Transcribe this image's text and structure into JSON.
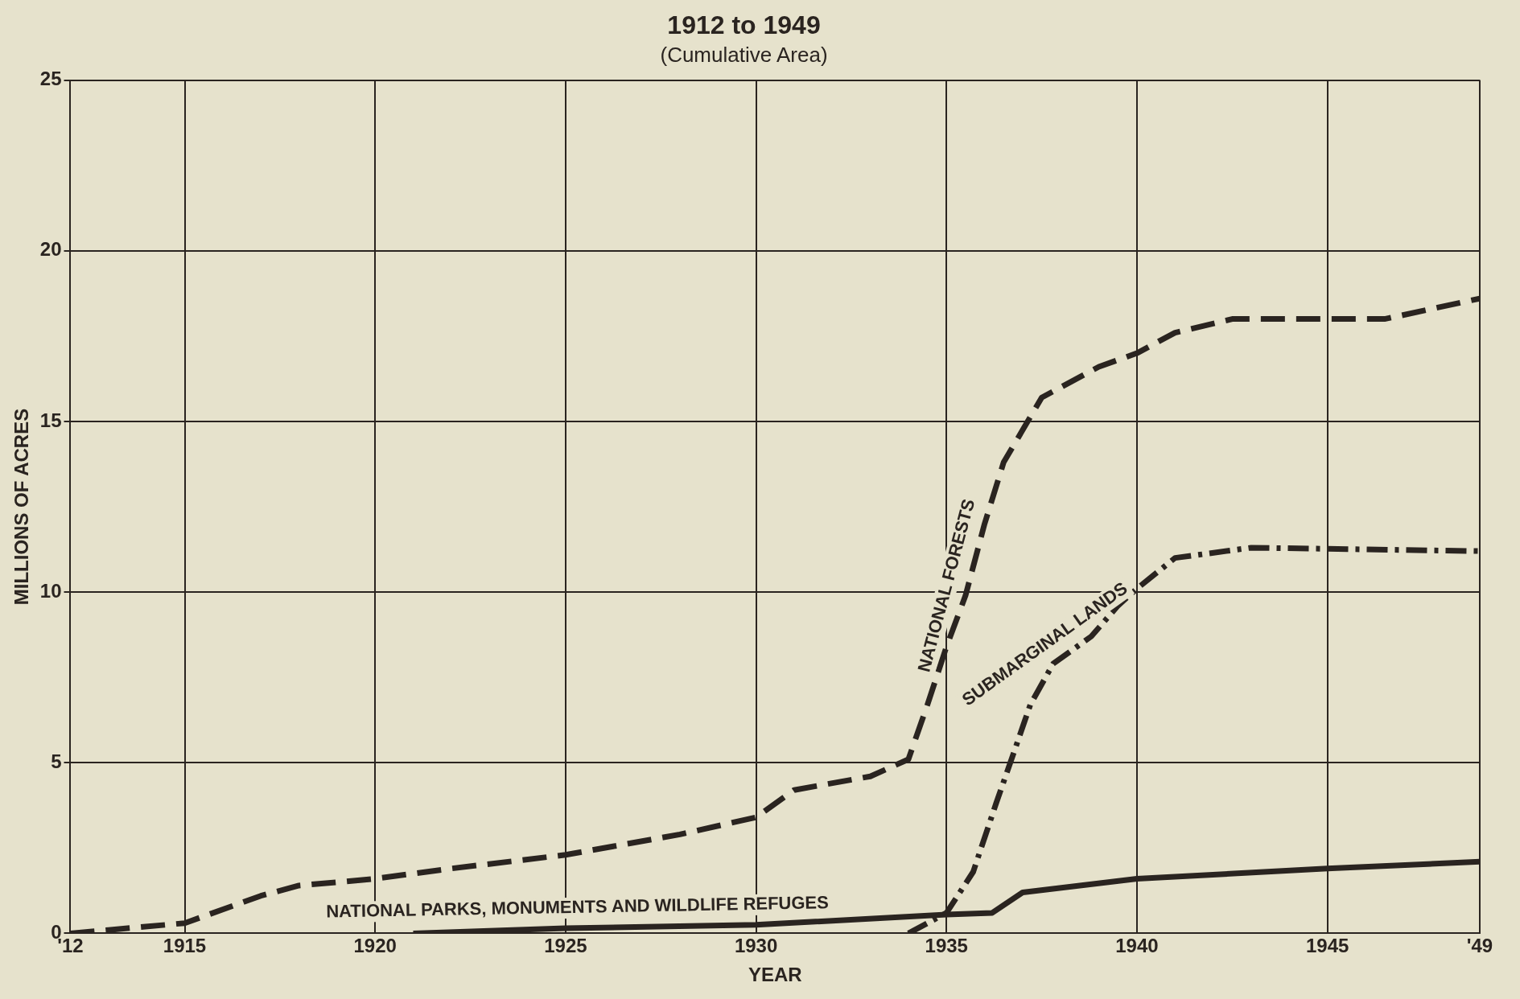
{
  "chart_data": {
    "type": "line",
    "title": "1912 to 1949",
    "subtitle": "(Cumulative Area)",
    "xlabel": "YEAR",
    "ylabel": "MILLIONS OF ACRES",
    "xlim": [
      1912,
      1949
    ],
    "xticks": [
      {
        "value": 1912,
        "label": "'12"
      },
      1915,
      1920,
      1925,
      1930,
      1935,
      1940,
      1945,
      {
        "value": 1949,
        "label": "'49"
      }
    ],
    "ylim": [
      0,
      25
    ],
    "yticks": [
      0,
      5,
      10,
      15,
      20,
      25
    ],
    "grid": true,
    "legend": false,
    "marker": "none",
    "series": [
      {
        "name": "NATIONAL FORESTS",
        "color": "#2a2420",
        "line_style": "dashed",
        "x": [
          1912,
          1913,
          1915,
          1917,
          1918,
          1920,
          1922,
          1925,
          1928,
          1930,
          1931,
          1933,
          1934,
          1934.5,
          1935,
          1935.5,
          1936,
          1936.5,
          1937.5,
          1939,
          1940,
          1941,
          1942.5,
          1946.5,
          1949
        ],
        "values": [
          0,
          0.1,
          0.3,
          1.1,
          1.4,
          1.6,
          1.9,
          2.3,
          2.9,
          3.4,
          4.2,
          4.6,
          5.1,
          6.7,
          8.4,
          9.9,
          12,
          13.8,
          15.7,
          16.6,
          17,
          17.6,
          18,
          18,
          18.6
        ]
      },
      {
        "name": "SUBMARGINAL LANDS",
        "color": "#2a2420",
        "line_style": "dashdot",
        "x": [
          1934,
          1935,
          1935.7,
          1936.3,
          1936.8,
          1937.2,
          1937.8,
          1938.8,
          1939.5,
          1940,
          1941,
          1943,
          1949
        ],
        "values": [
          0,
          0.6,
          1.8,
          3.8,
          5.4,
          6.7,
          7.9,
          8.7,
          9.6,
          10.1,
          11,
          11.3,
          11.2
        ]
      },
      {
        "name": "NATIONAL PARKS, MONUMENTS AND WILDLIFE REFUGES",
        "color": "#2a2420",
        "line_style": "solid",
        "x": [
          1921,
          1925,
          1930,
          1935,
          1936.2,
          1937,
          1940,
          1945,
          1949
        ],
        "values": [
          0,
          0.15,
          0.25,
          0.55,
          0.6,
          1.2,
          1.6,
          1.9,
          2.1
        ]
      }
    ]
  }
}
